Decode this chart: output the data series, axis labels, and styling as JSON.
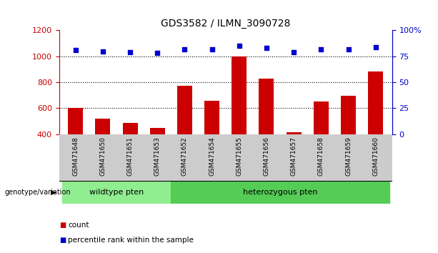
{
  "title": "GDS3582 / ILMN_3090728",
  "samples": [
    "GSM471648",
    "GSM471650",
    "GSM471651",
    "GSM471653",
    "GSM471652",
    "GSM471654",
    "GSM471655",
    "GSM471656",
    "GSM471657",
    "GSM471658",
    "GSM471659",
    "GSM471660"
  ],
  "counts": [
    600,
    520,
    485,
    450,
    770,
    655,
    1000,
    830,
    415,
    650,
    695,
    885
  ],
  "percentiles": [
    81,
    80,
    79,
    78,
    82,
    82,
    85,
    83,
    79,
    82,
    82,
    84
  ],
  "groups": [
    {
      "label": "wildtype pten",
      "start": 0,
      "end": 4,
      "color": "#90EE90"
    },
    {
      "label": "heterozygous pten",
      "start": 4,
      "end": 12,
      "color": "#55CC55"
    }
  ],
  "ylim_left": [
    400,
    1200
  ],
  "ylim_right": [
    0,
    100
  ],
  "yticks_left": [
    400,
    600,
    800,
    1000,
    1200
  ],
  "yticks_right": [
    0,
    25,
    50,
    75,
    100
  ],
  "bar_color": "#CC0000",
  "dot_color": "#0000CC",
  "grid_color": "#000000",
  "label_area_color": "#cccccc",
  "genotype_label": "genotype/variation",
  "legend_count": "count",
  "legend_percentile": "percentile rank within the sample"
}
